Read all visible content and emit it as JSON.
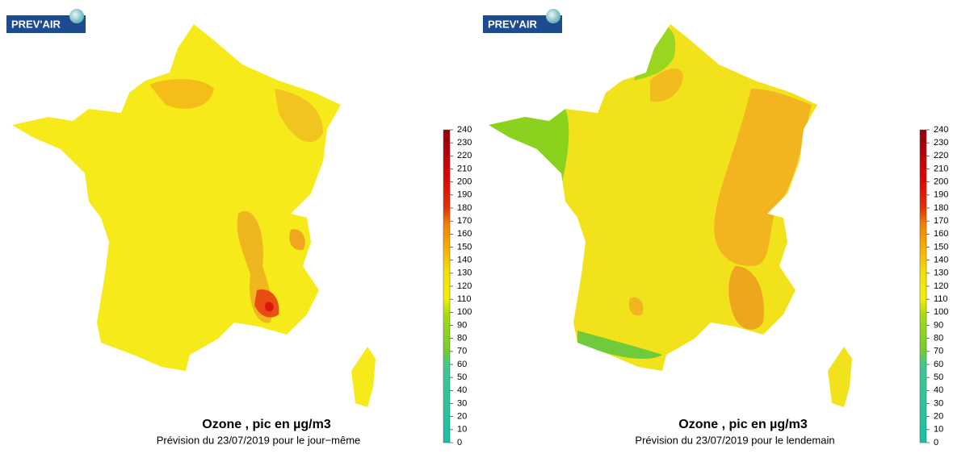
{
  "panels": [
    {
      "logo": "PREV'AIR",
      "title": "Ozone , pic en µg/m3",
      "subtitle": "Prévision du 23/07/2019 pour le jour−même",
      "scale": {
        "lim": [
          0,
          240
        ],
        "ticks": [
          0,
          10,
          20,
          30,
          40,
          50,
          60,
          70,
          80,
          90,
          100,
          110,
          120,
          130,
          140,
          150,
          160,
          170,
          180,
          190,
          200,
          210,
          220,
          230,
          240
        ]
      }
    },
    {
      "logo": "PREV'AIR",
      "title": "Ozone , pic en µg/m3",
      "subtitle": "Prévision du 23/07/2019 pour le lendemain",
      "scale": {
        "lim": [
          0,
          240
        ],
        "ticks": [
          0,
          10,
          20,
          30,
          40,
          50,
          60,
          70,
          80,
          90,
          100,
          110,
          120,
          130,
          140,
          150,
          160,
          170,
          180,
          190,
          200,
          210,
          220,
          230,
          240
        ]
      }
    }
  ]
}
